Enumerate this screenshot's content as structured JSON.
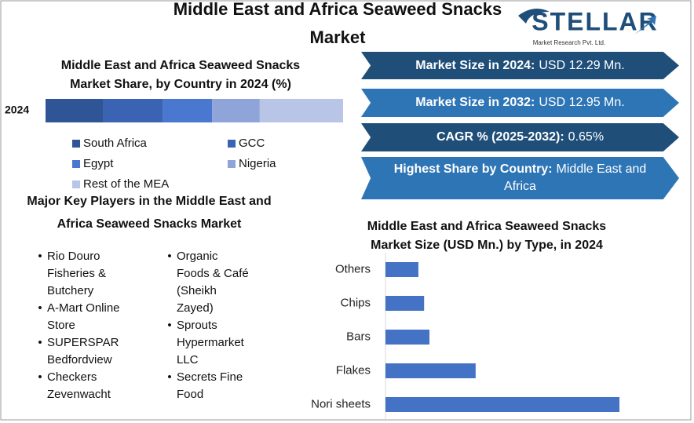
{
  "title": "Middle East and Africa Seaweed Snacks Market",
  "logo": {
    "name": "STELLAR",
    "tagline": "Market Research Pvt. Ltd."
  },
  "highlights": [
    {
      "label": "Market Size in 2024:",
      "value": "USD 12.29 Mn."
    },
    {
      "label": "Market Size in 2032:",
      "value": "USD 12.95 Mn."
    },
    {
      "label": "CAGR % (2025-2032):",
      "value": "0.65%"
    },
    {
      "label": "Highest Share by Country:",
      "value": "Middle East and Africa"
    }
  ],
  "key_players": {
    "title": "Major Key Players in the Middle East and Africa Seaweed Snacks Market",
    "columns": [
      [
        "Rio Douro Fisheries & Butchery",
        "A-Mart Online Store",
        "SUPERSPAR Bedfordview",
        "Checkers Zevenwacht"
      ],
      [
        "Organic Foods & Café (Sheikh Zayed)",
        "Sprouts Hypermarket LLC",
        "Secrets Fine Food"
      ]
    ]
  },
  "chart_data": [
    {
      "type": "stacked_bar",
      "title": "Middle East and Africa Seaweed Snacks Market Share, by Country in 2024 (%)",
      "categories": [
        "2024"
      ],
      "xlim": [
        0,
        100
      ],
      "series": [
        {
          "name": "South Africa",
          "color": "#2f5597",
          "values": [
            19.5
          ]
        },
        {
          "name": "GCC",
          "color": "#3a63b4",
          "values": [
            20
          ]
        },
        {
          "name": "Egypt",
          "color": "#4a77cf",
          "values": [
            16.5
          ]
        },
        {
          "name": "Nigeria",
          "color": "#8fa4d8",
          "values": [
            16
          ]
        },
        {
          "name": "Rest of the MEA",
          "color": "#b9c5e6",
          "values": [
            28
          ]
        }
      ]
    },
    {
      "type": "hbar",
      "title": "Middle East and Africa Seaweed Snacks Market Size (USD Mn.) by Type, in 2024",
      "categories": [
        "Others",
        "Chips",
        "Bars",
        "Flakes",
        "Nori sheets"
      ],
      "values": [
        0.92,
        1.08,
        1.23,
        2.52,
        6.54
      ],
      "color": "#4472c4",
      "xlim": [
        0,
        7
      ]
    }
  ]
}
